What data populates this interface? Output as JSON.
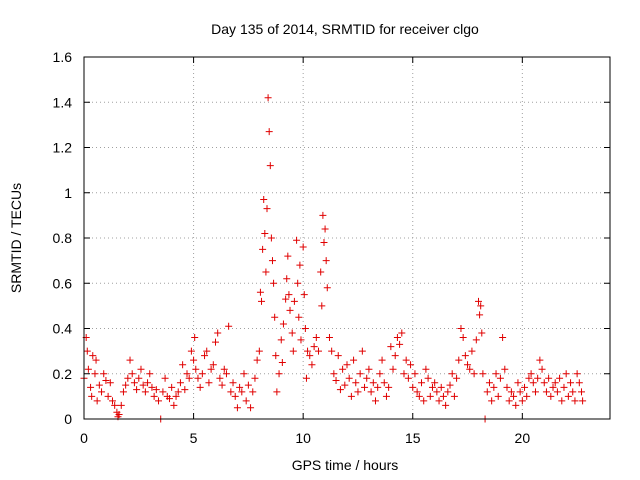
{
  "chart_data": {
    "type": "scatter",
    "title": "Day 135 of 2014, SRMTID for receiver clgo",
    "xlabel": "GPS time / hours",
    "ylabel": "SRMTID / TECUs",
    "xlim": [
      0,
      24
    ],
    "ylim": [
      0,
      1.6
    ],
    "xticks": [
      0,
      5,
      10,
      15,
      20
    ],
    "xtick_labels": [
      "0",
      "5",
      "10",
      "15",
      "20"
    ],
    "yticks": [
      0,
      0.2,
      0.4,
      0.6,
      0.8,
      1.0,
      1.2,
      1.4,
      1.6
    ],
    "ytick_labels": [
      "0",
      "0.2",
      "0.4",
      "0.6",
      "0.8",
      "1",
      "1.2",
      "1.4",
      "1.6"
    ],
    "grid": true,
    "marker": "+",
    "color": "#e00000",
    "series": [
      {
        "name": "SRMTID",
        "points": [
          [
            0.0,
            0.18
          ],
          [
            0.1,
            0.36
          ],
          [
            0.15,
            0.3
          ],
          [
            0.2,
            0.22
          ],
          [
            0.3,
            0.14
          ],
          [
            0.35,
            0.1
          ],
          [
            0.4,
            0.28
          ],
          [
            0.5,
            0.2
          ],
          [
            0.55,
            0.26
          ],
          [
            0.6,
            0.08
          ],
          [
            0.7,
            0.15
          ],
          [
            0.8,
            0.12
          ],
          [
            0.9,
            0.2
          ],
          [
            1.0,
            0.17
          ],
          [
            1.1,
            0.1
          ],
          [
            1.2,
            0.16
          ],
          [
            1.3,
            0.08
          ],
          [
            1.4,
            0.06
          ],
          [
            1.5,
            0.03
          ],
          [
            1.55,
            0.01
          ],
          [
            1.6,
            0.02
          ],
          [
            1.7,
            0.06
          ],
          [
            1.8,
            0.12
          ],
          [
            1.9,
            0.15
          ],
          [
            2.0,
            0.18
          ],
          [
            2.1,
            0.26
          ],
          [
            2.2,
            0.2
          ],
          [
            2.3,
            0.16
          ],
          [
            2.4,
            0.13
          ],
          [
            2.5,
            0.18
          ],
          [
            2.6,
            0.22
          ],
          [
            2.7,
            0.15
          ],
          [
            2.8,
            0.12
          ],
          [
            2.9,
            0.16
          ],
          [
            3.0,
            0.2
          ],
          [
            3.1,
            0.14
          ],
          [
            3.2,
            0.1
          ],
          [
            3.3,
            0.13
          ],
          [
            3.4,
            0.08
          ],
          [
            3.5,
            0.0
          ],
          [
            3.6,
            0.12
          ],
          [
            3.7,
            0.18
          ],
          [
            3.8,
            0.1
          ],
          [
            3.9,
            0.09
          ],
          [
            4.0,
            0.14
          ],
          [
            4.1,
            0.06
          ],
          [
            4.2,
            0.1
          ],
          [
            4.3,
            0.12
          ],
          [
            4.4,
            0.16
          ],
          [
            4.5,
            0.24
          ],
          [
            4.6,
            0.13
          ],
          [
            4.7,
            0.2
          ],
          [
            4.8,
            0.18
          ],
          [
            4.9,
            0.3
          ],
          [
            5.0,
            0.26
          ],
          [
            5.05,
            0.36
          ],
          [
            5.1,
            0.22
          ],
          [
            5.2,
            0.18
          ],
          [
            5.3,
            0.14
          ],
          [
            5.4,
            0.2
          ],
          [
            5.5,
            0.28
          ],
          [
            5.6,
            0.3
          ],
          [
            5.7,
            0.16
          ],
          [
            5.8,
            0.22
          ],
          [
            5.9,
            0.24
          ],
          [
            6.0,
            0.34
          ],
          [
            6.1,
            0.38
          ],
          [
            6.2,
            0.18
          ],
          [
            6.3,
            0.15
          ],
          [
            6.4,
            0.22
          ],
          [
            6.5,
            0.2
          ],
          [
            6.6,
            0.41
          ],
          [
            6.7,
            0.12
          ],
          [
            6.8,
            0.16
          ],
          [
            6.9,
            0.1
          ],
          [
            7.0,
            0.05
          ],
          [
            7.1,
            0.14
          ],
          [
            7.2,
            0.12
          ],
          [
            7.3,
            0.2
          ],
          [
            7.4,
            0.08
          ],
          [
            7.5,
            0.15
          ],
          [
            7.6,
            0.05
          ],
          [
            7.7,
            0.12
          ],
          [
            7.8,
            0.18
          ],
          [
            7.9,
            0.26
          ],
          [
            8.0,
            0.3
          ],
          [
            8.05,
            0.56
          ],
          [
            8.1,
            0.52
          ],
          [
            8.15,
            0.75
          ],
          [
            8.2,
            0.97
          ],
          [
            8.25,
            0.82
          ],
          [
            8.3,
            0.65
          ],
          [
            8.35,
            0.93
          ],
          [
            8.4,
            1.42
          ],
          [
            8.45,
            1.27
          ],
          [
            8.5,
            1.12
          ],
          [
            8.55,
            0.8
          ],
          [
            8.6,
            0.7
          ],
          [
            8.65,
            0.6
          ],
          [
            8.7,
            0.45
          ],
          [
            8.75,
            0.28
          ],
          [
            8.8,
            0.12
          ],
          [
            8.9,
            0.2
          ],
          [
            9.0,
            0.35
          ],
          [
            9.05,
            0.25
          ],
          [
            9.1,
            0.42
          ],
          [
            9.2,
            0.53
          ],
          [
            9.25,
            0.62
          ],
          [
            9.3,
            0.72
          ],
          [
            9.35,
            0.55
          ],
          [
            9.4,
            0.48
          ],
          [
            9.5,
            0.38
          ],
          [
            9.55,
            0.3
          ],
          [
            9.6,
            0.52
          ],
          [
            9.7,
            0.79
          ],
          [
            9.75,
            0.6
          ],
          [
            9.8,
            0.45
          ],
          [
            9.85,
            0.68
          ],
          [
            9.9,
            0.35
          ],
          [
            10.0,
            0.76
          ],
          [
            10.05,
            0.55
          ],
          [
            10.1,
            0.4
          ],
          [
            10.15,
            0.18
          ],
          [
            10.2,
            0.3
          ],
          [
            10.3,
            0.28
          ],
          [
            10.4,
            0.24
          ],
          [
            10.5,
            0.32
          ],
          [
            10.6,
            0.36
          ],
          [
            10.7,
            0.3
          ],
          [
            10.8,
            0.65
          ],
          [
            10.85,
            0.5
          ],
          [
            10.9,
            0.9
          ],
          [
            10.95,
            0.78
          ],
          [
            11.0,
            0.84
          ],
          [
            11.05,
            0.7
          ],
          [
            11.1,
            0.58
          ],
          [
            11.2,
            0.36
          ],
          [
            11.3,
            0.3
          ],
          [
            11.4,
            0.2
          ],
          [
            11.5,
            0.17
          ],
          [
            11.6,
            0.28
          ],
          [
            11.7,
            0.13
          ],
          [
            11.8,
            0.22
          ],
          [
            11.9,
            0.15
          ],
          [
            12.0,
            0.24
          ],
          [
            12.1,
            0.18
          ],
          [
            12.2,
            0.1
          ],
          [
            12.3,
            0.26
          ],
          [
            12.4,
            0.16
          ],
          [
            12.5,
            0.12
          ],
          [
            12.6,
            0.2
          ],
          [
            12.7,
            0.3
          ],
          [
            12.8,
            0.14
          ],
          [
            12.9,
            0.18
          ],
          [
            13.0,
            0.22
          ],
          [
            13.1,
            0.12
          ],
          [
            13.2,
            0.16
          ],
          [
            13.3,
            0.08
          ],
          [
            13.4,
            0.14
          ],
          [
            13.5,
            0.2
          ],
          [
            13.6,
            0.26
          ],
          [
            13.7,
            0.16
          ],
          [
            13.8,
            0.1
          ],
          [
            13.9,
            0.14
          ],
          [
            14.0,
            0.32
          ],
          [
            14.1,
            0.22
          ],
          [
            14.2,
            0.28
          ],
          [
            14.3,
            0.36
          ],
          [
            14.4,
            0.33
          ],
          [
            14.5,
            0.38
          ],
          [
            14.6,
            0.2
          ],
          [
            14.7,
            0.26
          ],
          [
            14.8,
            0.18
          ],
          [
            14.9,
            0.24
          ],
          [
            15.0,
            0.14
          ],
          [
            15.1,
            0.2
          ],
          [
            15.2,
            0.12
          ],
          [
            15.3,
            0.1
          ],
          [
            15.4,
            0.16
          ],
          [
            15.5,
            0.08
          ],
          [
            15.6,
            0.22
          ],
          [
            15.7,
            0.18
          ],
          [
            15.8,
            0.1
          ],
          [
            15.9,
            0.14
          ],
          [
            16.0,
            0.16
          ],
          [
            16.1,
            0.12
          ],
          [
            16.2,
            0.08
          ],
          [
            16.3,
            0.14
          ],
          [
            16.4,
            0.1
          ],
          [
            16.5,
            0.06
          ],
          [
            16.6,
            0.12
          ],
          [
            16.7,
            0.15
          ],
          [
            16.8,
            0.2
          ],
          [
            16.9,
            0.1
          ],
          [
            17.0,
            0.18
          ],
          [
            17.1,
            0.26
          ],
          [
            17.2,
            0.4
          ],
          [
            17.3,
            0.36
          ],
          [
            17.4,
            0.28
          ],
          [
            17.5,
            0.24
          ],
          [
            17.6,
            0.22
          ],
          [
            17.7,
            0.3
          ],
          [
            17.8,
            0.2
          ],
          [
            17.9,
            0.35
          ],
          [
            18.0,
            0.52
          ],
          [
            18.05,
            0.46
          ],
          [
            18.1,
            0.5
          ],
          [
            18.15,
            0.38
          ],
          [
            18.2,
            0.2
          ],
          [
            18.3,
            0.0
          ],
          [
            18.4,
            0.12
          ],
          [
            18.5,
            0.16
          ],
          [
            18.6,
            0.08
          ],
          [
            18.7,
            0.14
          ],
          [
            18.8,
            0.2
          ],
          [
            18.9,
            0.1
          ],
          [
            19.0,
            0.18
          ],
          [
            19.1,
            0.36
          ],
          [
            19.2,
            0.22
          ],
          [
            19.3,
            0.14
          ],
          [
            19.4,
            0.08
          ],
          [
            19.5,
            0.12
          ],
          [
            19.6,
            0.1
          ],
          [
            19.7,
            0.06
          ],
          [
            19.8,
            0.16
          ],
          [
            19.9,
            0.12
          ],
          [
            20.0,
            0.08
          ],
          [
            20.1,
            0.14
          ],
          [
            20.2,
            0.1
          ],
          [
            20.3,
            0.18
          ],
          [
            20.4,
            0.2
          ],
          [
            20.5,
            0.16
          ],
          [
            20.6,
            0.12
          ],
          [
            20.7,
            0.18
          ],
          [
            20.8,
            0.26
          ],
          [
            20.9,
            0.22
          ],
          [
            21.0,
            0.16
          ],
          [
            21.1,
            0.12
          ],
          [
            21.2,
            0.18
          ],
          [
            21.3,
            0.1
          ],
          [
            21.4,
            0.14
          ],
          [
            21.5,
            0.16
          ],
          [
            21.6,
            0.12
          ],
          [
            21.7,
            0.18
          ],
          [
            21.8,
            0.08
          ],
          [
            21.9,
            0.14
          ],
          [
            22.0,
            0.2
          ],
          [
            22.1,
            0.1
          ],
          [
            22.2,
            0.16
          ],
          [
            22.3,
            0.12
          ],
          [
            22.4,
            0.08
          ],
          [
            22.5,
            0.2
          ],
          [
            22.6,
            0.16
          ],
          [
            22.7,
            0.12
          ],
          [
            22.75,
            0.08
          ]
        ]
      }
    ]
  }
}
